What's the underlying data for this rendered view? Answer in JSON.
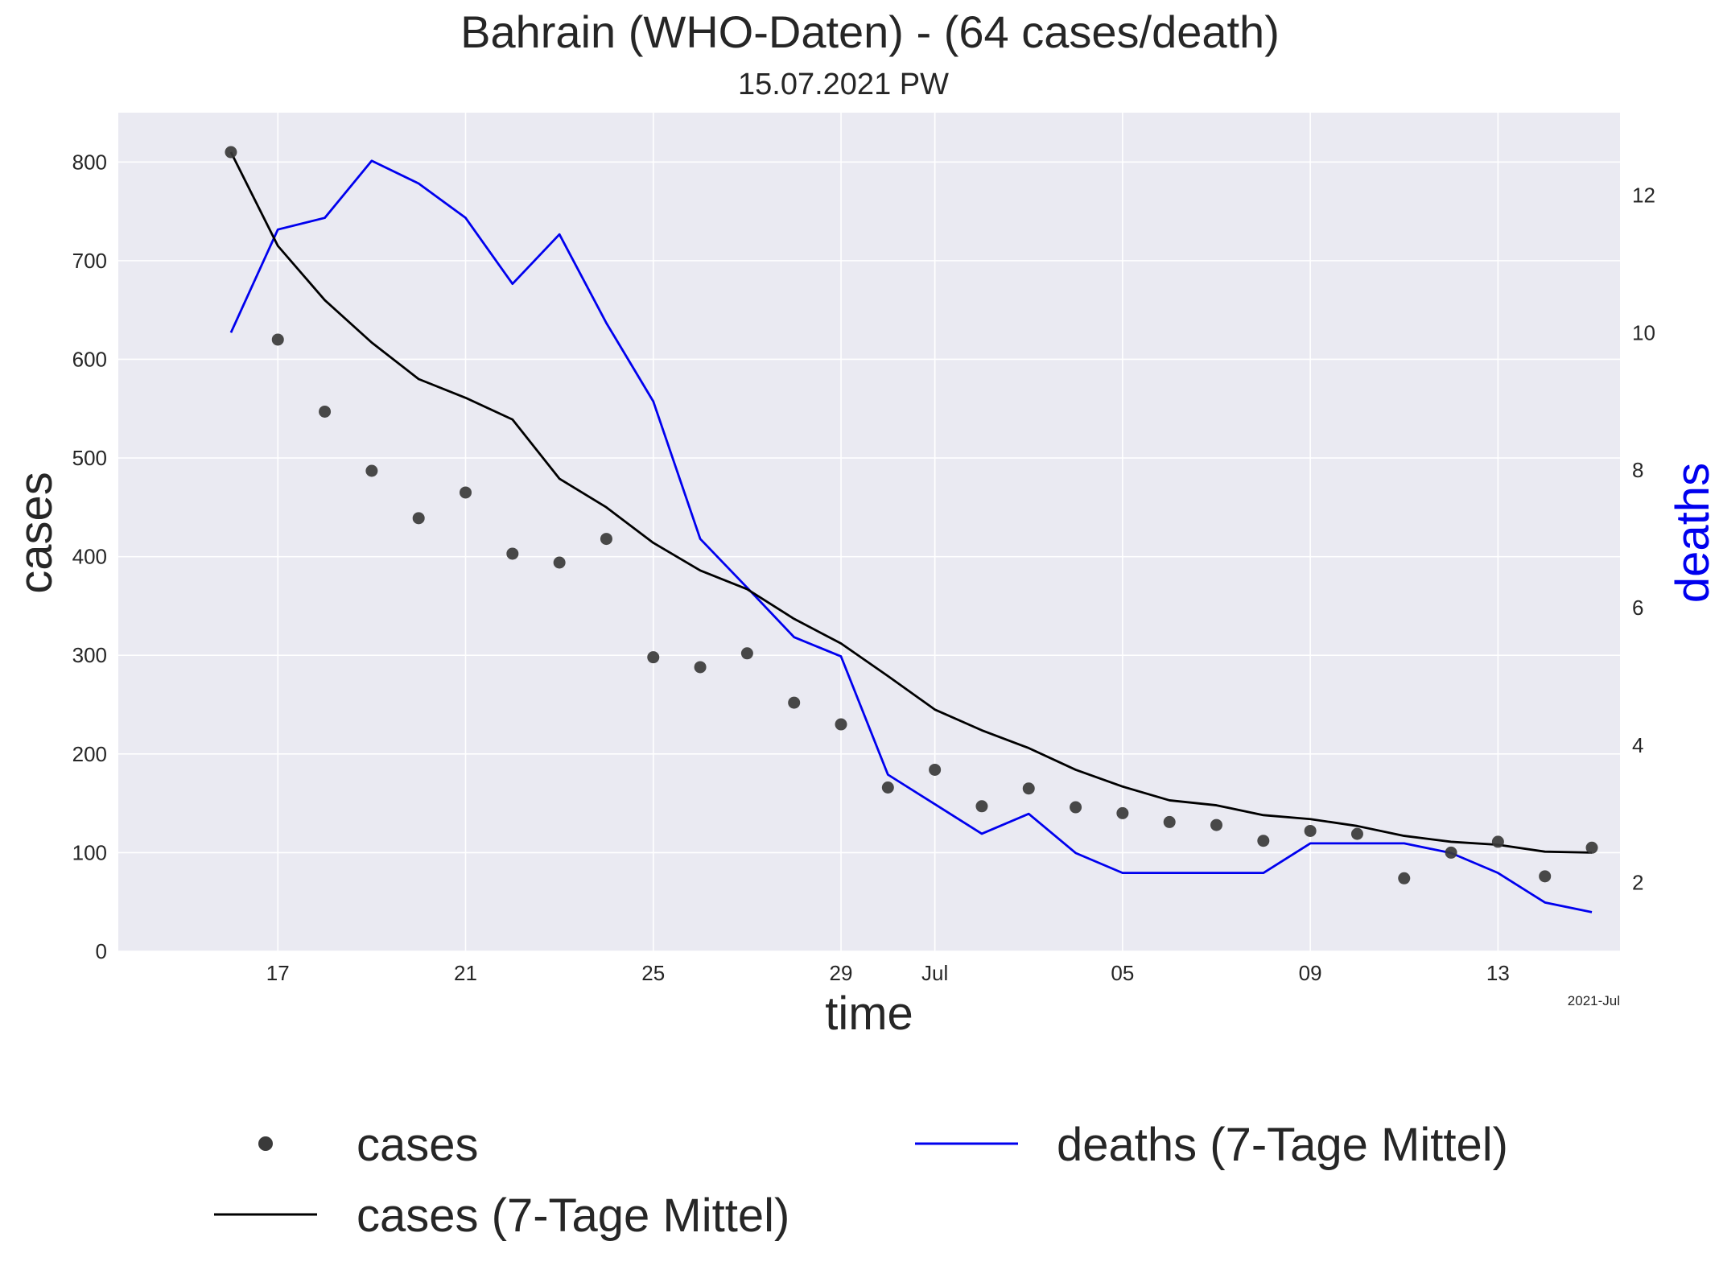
{
  "chart_data": {
    "type": "line",
    "title": "Bahrain (WHO-Daten) - (64 cases/death)",
    "subtitle": "15.07.2021 PW",
    "xlabel": "time",
    "ylabel": "cases",
    "y2label": "deaths",
    "x_offset_label": "2021-Jul",
    "x_dates": [
      "2021-06-16",
      "2021-06-17",
      "2021-06-18",
      "2021-06-19",
      "2021-06-20",
      "2021-06-21",
      "2021-06-22",
      "2021-06-23",
      "2021-06-24",
      "2021-06-25",
      "2021-06-26",
      "2021-06-27",
      "2021-06-28",
      "2021-06-29",
      "2021-06-30",
      "2021-07-01",
      "2021-07-02",
      "2021-07-03",
      "2021-07-04",
      "2021-07-05",
      "2021-07-06",
      "2021-07-07",
      "2021-07-08",
      "2021-07-09",
      "2021-07-10",
      "2021-07-11",
      "2021-07-12",
      "2021-07-13",
      "2021-07-14",
      "2021-07-15"
    ],
    "xlim": [
      "2021-06-13T14:24",
      "2021-07-15T14:24"
    ],
    "x_ticks": [
      {
        "date": "2021-06-17",
        "label": "17"
      },
      {
        "date": "2021-06-21",
        "label": "21"
      },
      {
        "date": "2021-06-25",
        "label": "25"
      },
      {
        "date": "2021-06-29",
        "label": "29"
      },
      {
        "date": "2021-07-01",
        "label": "Jul"
      },
      {
        "date": "2021-07-05",
        "label": "05"
      },
      {
        "date": "2021-07-09",
        "label": "09"
      },
      {
        "date": "2021-07-13",
        "label": "13"
      }
    ],
    "ylim": [
      0,
      850
    ],
    "y_ticks": [
      0,
      100,
      200,
      300,
      400,
      500,
      600,
      700,
      800
    ],
    "y2lim": [
      1.0,
      13.2
    ],
    "y2_ticks": [
      2,
      4,
      6,
      8,
      10,
      12
    ],
    "grid": true,
    "legend_position": "below",
    "series": [
      {
        "name": "cases",
        "style": "points",
        "axis": "left",
        "color": "#3a3a3a",
        "values": [
          810,
          620,
          547,
          487,
          439,
          465,
          403,
          394,
          418,
          298,
          288,
          302,
          252,
          230,
          166,
          184,
          147,
          165,
          146,
          140,
          131,
          128,
          112,
          122,
          119,
          74,
          100,
          111,
          76,
          105
        ]
      },
      {
        "name": "cases (7-Tage Mittel)",
        "style": "line",
        "axis": "left",
        "color": "#000000",
        "values": [
          810,
          715,
          660,
          617,
          580,
          561,
          539,
          479,
          450,
          414,
          386,
          367,
          337,
          312,
          279,
          245,
          224,
          206,
          184,
          167,
          153,
          148,
          138,
          134,
          127,
          117,
          111,
          108,
          101,
          100
        ]
      },
      {
        "name": "deaths (7-Tage Mittel)",
        "style": "line",
        "axis": "right",
        "color": "#0000ee",
        "values": [
          10.0,
          11.5,
          11.67,
          12.5,
          12.17,
          11.67,
          10.71,
          11.43,
          10.14,
          9.0,
          7.0,
          6.29,
          5.57,
          5.29,
          3.57,
          3.14,
          2.71,
          3.0,
          2.43,
          2.14,
          2.14,
          2.14,
          2.14,
          2.57,
          2.57,
          2.57,
          2.43,
          2.14,
          1.71,
          1.57
        ]
      }
    ]
  }
}
